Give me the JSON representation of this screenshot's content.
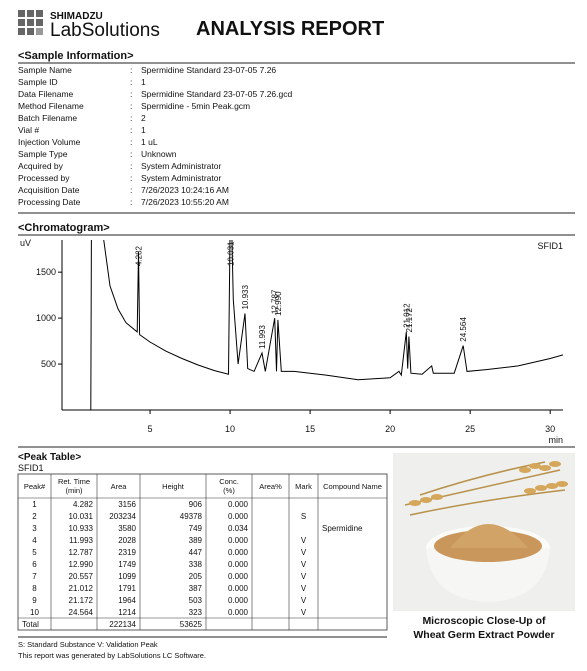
{
  "header": {
    "brand_top": "SHIMADZU",
    "brand": "LabSolutions",
    "title": "ANALYSIS REPORT"
  },
  "sample_info": {
    "heading": "<Sample Information>",
    "rows": [
      [
        "Sample Name",
        "Spermidine Standard 23-07-05 7.26"
      ],
      [
        "Sample ID",
        "1"
      ],
      [
        "Data Filename",
        "Spermidine Standard 23-07-05 7.26.gcd"
      ],
      [
        "Method Filename",
        "Spermidine - 5min Peak.gcm"
      ],
      [
        "Batch Filename",
        "2"
      ],
      [
        "Vial #",
        "1"
      ],
      [
        "Injection Volume",
        "1 uL"
      ],
      [
        "Sample Type",
        "Unknown"
      ],
      [
        "Acquired by",
        "System Administrator"
      ],
      [
        "Processed by",
        "System Administrator"
      ],
      [
        "Acquisition Date",
        "7/26/2023 10:24:16 AM"
      ],
      [
        "Processing Date",
        "7/26/2023 10:55:20 AM"
      ]
    ],
    "separator": ":"
  },
  "chart_data": {
    "type": "line",
    "title": "<Chromatogram>",
    "y_unit": "uV",
    "x_unit": "min",
    "detector": "SFID1",
    "xlim": [
      -0.5,
      30.8
    ],
    "ylim": [
      0,
      1850
    ],
    "xticks": [
      5,
      10,
      15,
      20,
      25,
      30
    ],
    "yticks": [
      500,
      1000,
      1500
    ],
    "color": "#000000",
    "x": [
      -0.5,
      1.3,
      1.35,
      1.6,
      2.5,
      3,
      3.5,
      4.2,
      4.282,
      4.35,
      5,
      6,
      7,
      8,
      9,
      9.9,
      10.031,
      10.2,
      10.5,
      10.933,
      11.1,
      11.5,
      11.993,
      12.2,
      12.787,
      12.9,
      12.99,
      13.2,
      14,
      16,
      18,
      20,
      20.557,
      20.7,
      21.012,
      21.1,
      21.172,
      21.3,
      22,
      22.6,
      22.7,
      24,
      24.564,
      24.8,
      26,
      28,
      30,
      30.8
    ],
    "y": [
      0,
      0,
      2500,
      2500,
      1350,
      1100,
      950,
      850,
      1720,
      820,
      740,
      640,
      560,
      490,
      430,
      390,
      2500,
      1200,
      500,
      1050,
      450,
      420,
      620,
      420,
      1000,
      420,
      980,
      420,
      420,
      380,
      330,
      350,
      420,
      380,
      850,
      450,
      800,
      400,
      390,
      480,
      400,
      400,
      700,
      420,
      440,
      480,
      560,
      600
    ],
    "peak_labels": [
      4.282,
      10.031,
      10.933,
      11.993,
      12.787,
      12.99,
      21.012,
      21.172,
      24.564
    ],
    "peak_label_texts": [
      "4.282",
      "10.031",
      "10.933",
      "11.993",
      "12.787",
      "12.990",
      "21.012",
      "21.172",
      "24.564"
    ]
  },
  "peak_table": {
    "heading": "<Peak Table>",
    "detector": "SFID1",
    "columns": [
      "Peak#",
      "Ret. Time\n(min)",
      "Area",
      "Height",
      "Conc.\n(%)",
      "Area%",
      "Mark",
      "Compound Name"
    ],
    "rows": [
      [
        "1",
        "4.282",
        "3156",
        "906",
        "0.000",
        null,
        null,
        null
      ],
      [
        "2",
        "10.031",
        "203234",
        "49378",
        "0.000",
        null,
        "S",
        null
      ],
      [
        "3",
        "10.933",
        "3580",
        "749",
        "0.034",
        null,
        null,
        "Spermidine"
      ],
      [
        "4",
        "11.993",
        "2028",
        "389",
        "0.000",
        null,
        "V",
        null
      ],
      [
        "5",
        "12.787",
        "2319",
        "447",
        "0.000",
        null,
        "V",
        null
      ],
      [
        "6",
        "12.990",
        "1749",
        "338",
        "0.000",
        null,
        "V",
        null
      ],
      [
        "7",
        "20.557",
        "1099",
        "205",
        "0.000",
        null,
        "V",
        null
      ],
      [
        "8",
        "21.012",
        "1791",
        "387",
        "0.000",
        null,
        "V",
        null
      ],
      [
        "9",
        "21.172",
        "1964",
        "503",
        "0.000",
        null,
        "V",
        null
      ],
      [
        "10",
        "24.564",
        "1214",
        "323",
        "0.000",
        null,
        "V",
        null
      ],
      [
        "Total",
        null,
        "222134",
        "53625",
        null,
        null,
        null,
        null
      ]
    ]
  },
  "image_caption": [
    "Microscopic Close-Up of",
    "Wheat Germ Extract Powder"
  ],
  "footer": [
    "S: Standard Substance   V: Validation Peak",
    "This report was generated by LabSolutions LC Software."
  ]
}
